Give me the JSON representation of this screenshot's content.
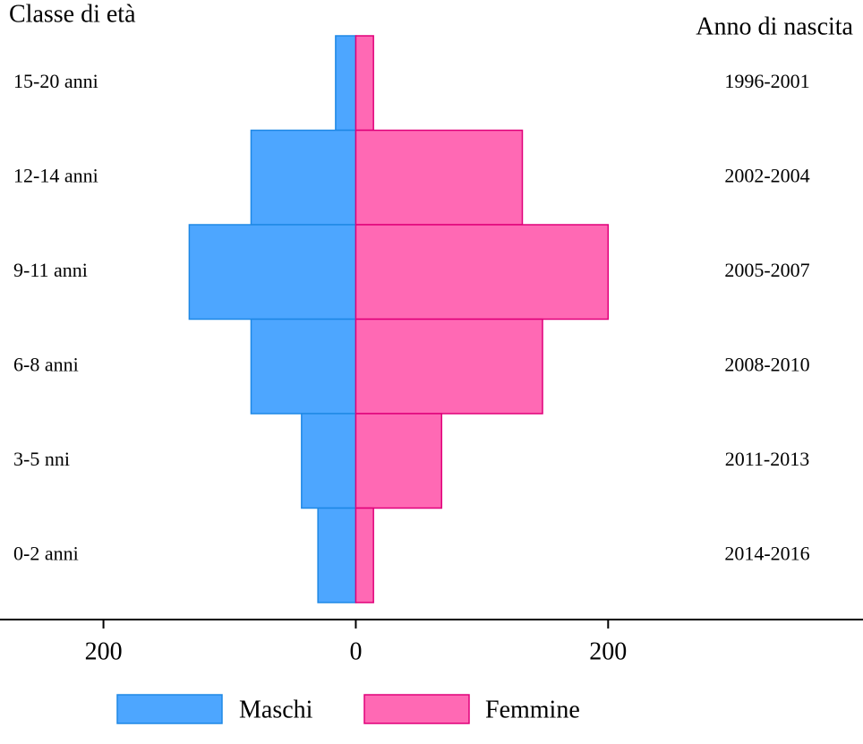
{
  "chart_data": {
    "type": "pyramid",
    "y_title": "Classe di età",
    "y2_title": "Anno di nascita",
    "categories": [
      "15-20 anni",
      "12-14 anni",
      "9-11 anni",
      "6-8 anni",
      "3-5 nni",
      "0-2 anni"
    ],
    "categories2": [
      "1996-2001",
      "2002-2004",
      "2005-2007",
      "2008-2010",
      "2011-2013",
      "2014-2016"
    ],
    "series": [
      {
        "name": "Maschi",
        "color": "#4da6ff",
        "values": [
          16,
          83,
          132,
          83,
          43,
          30
        ]
      },
      {
        "name": "Femmine",
        "color": "#ff69b4",
        "values": [
          14,
          132,
          200,
          148,
          68,
          14
        ]
      }
    ],
    "xlim": [
      -282,
      402
    ],
    "xticks": [
      {
        "value": -200,
        "label": "200"
      },
      0,
      200
    ]
  }
}
